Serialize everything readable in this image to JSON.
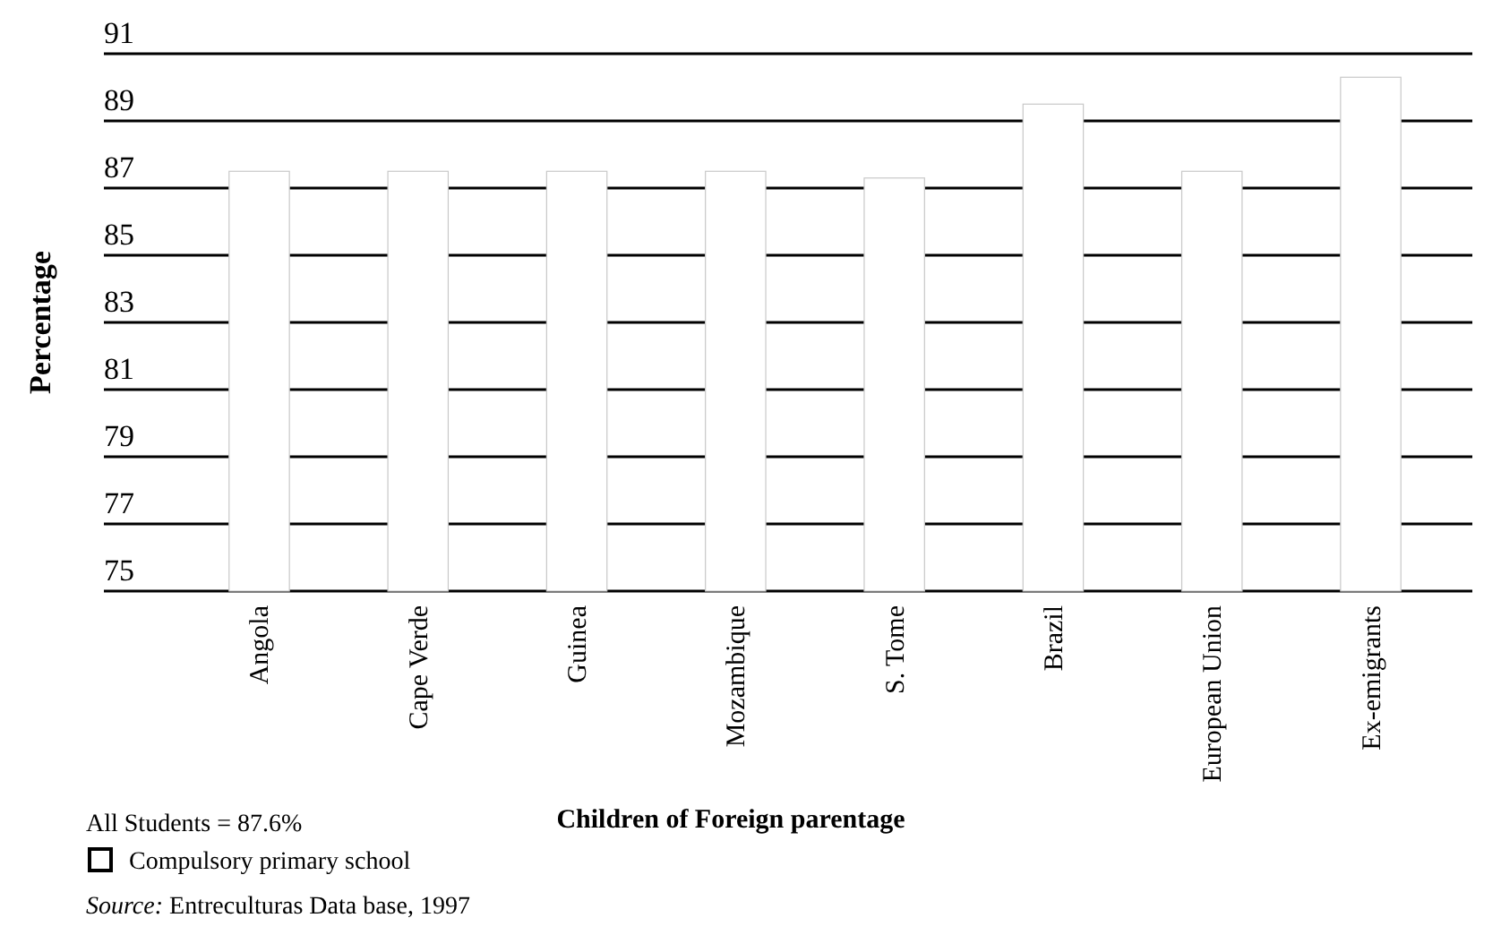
{
  "chart_data": {
    "type": "bar",
    "xlabel": "Children of Foreign parentage",
    "ylabel": "Percentage",
    "categories": [
      "Angola",
      "Cape Verde",
      "Guinea",
      "Mozambique",
      "S. Tome",
      "Brazil",
      "European Union",
      "Ex-emigrants"
    ],
    "series": [
      {
        "name": "Compulsory primary school",
        "color": "#ffffff",
        "values": [
          87.5,
          87.5,
          87.5,
          87.5,
          87.3,
          89.5,
          87.5,
          90.3
        ]
      }
    ],
    "ylim": [
      75,
      91
    ],
    "yticks": [
      75,
      77,
      79,
      81,
      83,
      85,
      87,
      89,
      91
    ],
    "grid": "y",
    "legend": "bottom left",
    "annotations": [
      "All Students = 87.6%",
      "Source: Entreculturas Data base, 1997"
    ]
  }
}
